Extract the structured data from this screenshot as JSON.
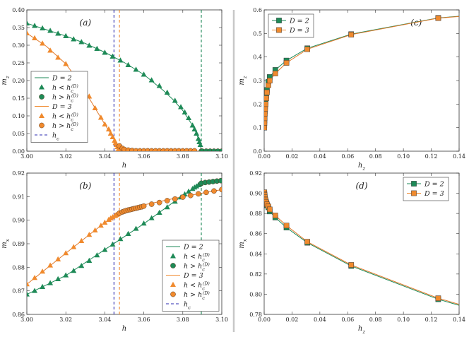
{
  "colors": {
    "green": "#1e8a57",
    "orange": "#f08a2e",
    "orange_line": "#e0782a",
    "blue": "#2b2bb0",
    "divider": "#c8c8c8",
    "edge": "#2a2a2a"
  },
  "chart_data": [
    {
      "id": "a",
      "type": "line",
      "panel_label": "(a)",
      "xlabel": "h",
      "ylabel": "m_z",
      "xlim": [
        3.0,
        3.1
      ],
      "ylim": [
        0.0,
        0.4
      ],
      "xticks": [
        3.0,
        3.02,
        3.04,
        3.06,
        3.08,
        3.1
      ],
      "xtick_labels": [
        "3.00",
        "3.02",
        "3.04",
        "3.06",
        "3.08",
        "3.10"
      ],
      "yticks": [
        0,
        0.05,
        0.1,
        0.15,
        0.2,
        0.25,
        0.3,
        0.35,
        0.4
      ],
      "ytick_labels": [
        "0.00",
        "0.05",
        "0.10",
        "0.15",
        "0.20",
        "0.25",
        "0.30",
        "0.35",
        "0.40"
      ],
      "vlines": [
        {
          "x": 3.0447,
          "color": "blue"
        },
        {
          "x": 3.0475,
          "color": "orange"
        },
        {
          "x": 3.0895,
          "color": "green"
        }
      ],
      "legend_position": "lower-left",
      "legend": [
        {
          "label": "D = 2",
          "kind": "line",
          "color": "green"
        },
        {
          "label": "h < h_c^(D)",
          "kind": "triangle",
          "color": "green"
        },
        {
          "label": "h > h_c^(D)",
          "kind": "circle",
          "color": "green"
        },
        {
          "label": "D = 3",
          "kind": "line",
          "color": "orange"
        },
        {
          "label": "h < h_c^(D)",
          "kind": "triangle",
          "color": "orange"
        },
        {
          "label": "h > h_c^(D)",
          "kind": "circle",
          "color": "orange"
        },
        {
          "label": "h_c",
          "kind": "dashed",
          "color": "blue"
        }
      ],
      "series": [
        {
          "name": "D=2 line",
          "kind": "line",
          "color": "green",
          "x": [
            3.0,
            3.01,
            3.02,
            3.03,
            3.04,
            3.05,
            3.06,
            3.07,
            3.075,
            3.08,
            3.085,
            3.087,
            3.089,
            3.0895,
            3.09,
            3.1
          ],
          "y": [
            0.362,
            0.344,
            0.326,
            0.305,
            0.28,
            0.251,
            0.217,
            0.172,
            0.146,
            0.115,
            0.073,
            0.05,
            0.018,
            0.0,
            0.0,
            0.0
          ]
        },
        {
          "name": "D=2, h < hc",
          "kind": "triangle",
          "color": "green",
          "x": [
            3.0,
            3.004,
            3.008,
            3.012,
            3.016,
            3.02,
            3.024,
            3.028,
            3.032,
            3.036,
            3.04,
            3.044,
            3.048,
            3.052,
            3.056,
            3.06,
            3.064,
            3.068,
            3.072,
            3.076,
            3.079,
            3.081,
            3.083,
            3.085,
            3.086,
            3.087,
            3.088,
            3.0885,
            3.089
          ],
          "y": [
            0.362,
            0.355,
            0.348,
            0.341,
            0.333,
            0.326,
            0.317,
            0.309,
            0.299,
            0.29,
            0.279,
            0.268,
            0.257,
            0.244,
            0.231,
            0.217,
            0.201,
            0.185,
            0.166,
            0.143,
            0.125,
            0.11,
            0.094,
            0.073,
            0.062,
            0.05,
            0.035,
            0.026,
            0.018
          ]
        },
        {
          "name": "D=2, h > hc",
          "kind": "circle",
          "color": "green",
          "x": [
            3.0895,
            3.09,
            3.092,
            3.094,
            3.096,
            3.098,
            3.1
          ],
          "y": [
            0.0,
            0.0,
            0.0,
            0.0,
            0.0,
            0.0,
            0.0
          ]
        },
        {
          "name": "D=3 line",
          "kind": "line",
          "color": "orange",
          "x": [
            3.0,
            3.01,
            3.02,
            3.025,
            3.03,
            3.035,
            3.04,
            3.043,
            3.045,
            3.0465,
            3.0475,
            3.05,
            3.06,
            3.1
          ],
          "y": [
            0.334,
            0.297,
            0.247,
            0.21,
            0.168,
            0.122,
            0.076,
            0.05,
            0.03,
            0.012,
            0.0,
            0.0,
            0.0,
            0.0
          ]
        },
        {
          "name": "D=3, h < hc",
          "kind": "triangle",
          "color": "orange",
          "x": [
            3.0,
            3.004,
            3.008,
            3.012,
            3.016,
            3.02,
            3.024,
            3.028,
            3.032,
            3.035,
            3.038,
            3.04,
            3.042,
            3.043,
            3.044,
            3.045,
            3.0455,
            3.046,
            3.0465,
            3.047
          ],
          "y": [
            0.334,
            0.32,
            0.305,
            0.285,
            0.265,
            0.247,
            0.217,
            0.185,
            0.155,
            0.122,
            0.095,
            0.076,
            0.062,
            0.05,
            0.04,
            0.03,
            0.024,
            0.018,
            0.012,
            0.006
          ]
        },
        {
          "name": "D=3, h > hc",
          "kind": "circle",
          "color": "orange",
          "x": [
            3.0475,
            3.049,
            3.05,
            3.052,
            3.054,
            3.056,
            3.058,
            3.06,
            3.062,
            3.064,
            3.066,
            3.068,
            3.07,
            3.072,
            3.074,
            3.076,
            3.078,
            3.08,
            3.082,
            3.084,
            3.086
          ],
          "y": [
            0.015,
            0.008,
            0.005,
            0.003,
            0.002,
            0.001,
            0.001,
            0.001,
            0.001,
            0.001,
            0.001,
            0.001,
            0.001,
            0.001,
            0.001,
            0.001,
            0.001,
            0.001,
            0.001,
            0.001,
            0.001
          ]
        }
      ]
    },
    {
      "id": "b",
      "type": "line",
      "panel_label": "(b)",
      "xlabel": "h",
      "ylabel": "m_x",
      "xlim": [
        3.0,
        3.1
      ],
      "ylim": [
        0.86,
        0.92
      ],
      "xticks": [
        3.0,
        3.02,
        3.04,
        3.06,
        3.08,
        3.1
      ],
      "xtick_labels": [
        "3.00",
        "3.02",
        "3.04",
        "3.06",
        "3.08",
        "3.10"
      ],
      "yticks": [
        0.86,
        0.87,
        0.88,
        0.89,
        0.9,
        0.91,
        0.92
      ],
      "ytick_labels": [
        "0.86",
        "0.87",
        "0.88",
        "0.89",
        "0.90",
        "0.91",
        "0.92"
      ],
      "vlines": [
        {
          "x": 3.0447,
          "color": "blue"
        },
        {
          "x": 3.0475,
          "color": "orange"
        },
        {
          "x": 3.0895,
          "color": "green"
        }
      ],
      "legend_position": "lower-right",
      "legend": [
        {
          "label": "D = 2",
          "kind": "line",
          "color": "green"
        },
        {
          "label": "h < h_c^(D)",
          "kind": "triangle",
          "color": "green"
        },
        {
          "label": "h > h_c^(D)",
          "kind": "circle",
          "color": "green"
        },
        {
          "label": "D = 3",
          "kind": "line",
          "color": "orange"
        },
        {
          "label": "h < h_c^(D)",
          "kind": "triangle",
          "color": "orange"
        },
        {
          "label": "h > h_c^(D)",
          "kind": "circle",
          "color": "orange"
        },
        {
          "label": "h_c",
          "kind": "dashed",
          "color": "blue"
        }
      ],
      "series": [
        {
          "name": "D=2 line",
          "kind": "line",
          "color": "green",
          "x": [
            3.0,
            3.02,
            3.04,
            3.06,
            3.08,
            3.088,
            3.0895,
            3.095,
            3.1
          ],
          "y": [
            0.8685,
            0.8765,
            0.8875,
            0.8985,
            0.9105,
            0.915,
            0.9157,
            0.9163,
            0.9168
          ]
        },
        {
          "name": "D=2, h < hc",
          "kind": "triangle",
          "color": "green",
          "x": [
            3.0,
            3.004,
            3.008,
            3.012,
            3.016,
            3.02,
            3.024,
            3.028,
            3.032,
            3.036,
            3.04,
            3.044,
            3.048,
            3.052,
            3.056,
            3.06,
            3.064,
            3.068,
            3.072,
            3.076,
            3.079,
            3.081,
            3.083,
            3.085,
            3.086,
            3.087,
            3.088,
            3.0885,
            3.089
          ],
          "y": [
            0.8685,
            0.87,
            0.8717,
            0.8733,
            0.875,
            0.8766,
            0.8785,
            0.8806,
            0.8828,
            0.8851,
            0.8874,
            0.8897,
            0.892,
            0.8942,
            0.8964,
            0.8986,
            0.9009,
            0.9032,
            0.9055,
            0.9079,
            0.9097,
            0.911,
            0.9122,
            0.9133,
            0.9139,
            0.9144,
            0.9149,
            0.9152,
            0.9155
          ]
        },
        {
          "name": "D=2, h > hc",
          "kind": "circle",
          "color": "green",
          "x": [
            3.0895,
            3.0915,
            3.0935,
            3.0955,
            3.0975,
            3.0995
          ],
          "y": [
            0.9157,
            0.916,
            0.9162,
            0.9164,
            0.9166,
            0.9168
          ]
        },
        {
          "name": "D=3 line",
          "kind": "line",
          "color": "orange",
          "x": [
            3.0,
            3.02,
            3.04,
            3.0475,
            3.06,
            3.08,
            3.1
          ],
          "y": [
            0.8728,
            0.886,
            0.899,
            0.903,
            0.9065,
            0.91,
            0.913
          ]
        },
        {
          "name": "D=3, h < hc",
          "kind": "triangle",
          "color": "orange",
          "x": [
            3.0,
            3.004,
            3.008,
            3.012,
            3.016,
            3.02,
            3.024,
            3.028,
            3.032,
            3.035,
            3.038,
            3.04,
            3.042,
            3.043,
            3.044,
            3.045,
            3.0455,
            3.046,
            3.0465,
            3.047
          ],
          "y": [
            0.8728,
            0.8755,
            0.8782,
            0.8808,
            0.8834,
            0.886,
            0.8886,
            0.8912,
            0.8938,
            0.8957,
            0.8977,
            0.899,
            0.9002,
            0.9008,
            0.9013,
            0.9018,
            0.902,
            0.9023,
            0.9025,
            0.9028
          ]
        },
        {
          "name": "D=3, h > hc",
          "kind": "circle",
          "color": "orange",
          "x": [
            3.0475,
            3.049,
            3.05,
            3.051,
            3.052,
            3.053,
            3.054,
            3.055,
            3.056,
            3.057,
            3.058,
            3.059,
            3.06,
            3.064,
            3.068,
            3.072,
            3.076,
            3.08,
            3.084,
            3.088,
            3.092,
            3.096,
            3.1
          ],
          "y": [
            0.903,
            0.9035,
            0.9038,
            0.9041,
            0.9043,
            0.9045,
            0.9047,
            0.9049,
            0.9051,
            0.9053,
            0.9055,
            0.9057,
            0.906,
            0.9068,
            0.9075,
            0.9083,
            0.909,
            0.9098,
            0.9105,
            0.9112,
            0.9118,
            0.9124,
            0.913
          ]
        }
      ]
    },
    {
      "id": "c",
      "type": "line",
      "panel_label": "(c)",
      "xlabel": "h_z",
      "ylabel": "m_z",
      "xlim": [
        0.0,
        0.14
      ],
      "ylim": [
        0.0,
        0.6
      ],
      "xticks": [
        0,
        0.02,
        0.04,
        0.06,
        0.08,
        0.1,
        0.12,
        0.14
      ],
      "xtick_labels": [
        "0.00",
        "0.02",
        "0.04",
        "0.06",
        "0.08",
        "0.10",
        "0.12",
        "0.14"
      ],
      "yticks": [
        0,
        0.1,
        0.2,
        0.3,
        0.4,
        0.5,
        0.6
      ],
      "ytick_labels": [
        "0.0",
        "0.1",
        "0.2",
        "0.3",
        "0.4",
        "0.5",
        "0.6"
      ],
      "vlines": [],
      "legend_position": "top-left",
      "legend": [
        {
          "label": "D = 2",
          "kind": "square-line",
          "color": "green"
        },
        {
          "label": "D = 3",
          "kind": "square-line",
          "color": "orange"
        }
      ],
      "series": [
        {
          "name": "D = 2",
          "kind": "square",
          "color": "green",
          "x": [
            0.0001,
            0.0002,
            0.0003,
            0.0005,
            0.0007,
            0.001,
            0.0015,
            0.002,
            0.003,
            0.004,
            0.008,
            0.016,
            0.031,
            0.0625,
            0.125,
            0.14
          ],
          "y": [
            0.11,
            0.13,
            0.145,
            0.17,
            0.19,
            0.21,
            0.235,
            0.26,
            0.295,
            0.315,
            0.345,
            0.385,
            0.437,
            0.497,
            0.566,
            0.573
          ]
        },
        {
          "name": "D = 3",
          "kind": "square",
          "color": "orange",
          "x": [
            0.0001,
            0.0002,
            0.0003,
            0.0005,
            0.0007,
            0.001,
            0.0015,
            0.002,
            0.003,
            0.004,
            0.008,
            0.016,
            0.031,
            0.0625,
            0.125,
            0.14
          ],
          "y": [
            0.1,
            0.12,
            0.14,
            0.16,
            0.18,
            0.2,
            0.225,
            0.25,
            0.28,
            0.3,
            0.33,
            0.375,
            0.433,
            0.495,
            0.565,
            0.572
          ]
        }
      ]
    },
    {
      "id": "d",
      "type": "line",
      "panel_label": "(d)",
      "xlabel": "h_z",
      "ylabel": "m_x",
      "xlim": [
        0.0,
        0.14
      ],
      "ylim": [
        0.78,
        0.92
      ],
      "xticks": [
        0,
        0.02,
        0.04,
        0.06,
        0.08,
        0.1,
        0.12,
        0.14
      ],
      "xtick_labels": [
        "0.00",
        "0.02",
        "0.04",
        "0.06",
        "0.08",
        "0.10",
        "0.12",
        "0.14"
      ],
      "yticks": [
        0.78,
        0.8,
        0.82,
        0.84,
        0.86,
        0.88,
        0.9,
        0.92
      ],
      "ytick_labels": [
        "0.78",
        "0.80",
        "0.82",
        "0.84",
        "0.86",
        "0.88",
        "0.90",
        "0.92"
      ],
      "vlines": [],
      "legend_position": "top-right",
      "legend": [
        {
          "label": "D = 2",
          "kind": "square-line",
          "color": "green"
        },
        {
          "label": "D = 3",
          "kind": "square-line",
          "color": "orange"
        }
      ],
      "series": [
        {
          "name": "D = 2",
          "kind": "square",
          "color": "green",
          "x": [
            0.0001,
            0.0002,
            0.0003,
            0.0005,
            0.0007,
            0.001,
            0.0015,
            0.002,
            0.003,
            0.004,
            0.008,
            0.016,
            0.031,
            0.0625,
            0.125,
            0.14
          ],
          "y": [
            0.9,
            0.898,
            0.897,
            0.895,
            0.893,
            0.892,
            0.89,
            0.888,
            0.886,
            0.882,
            0.876,
            0.866,
            0.851,
            0.828,
            0.795,
            0.789
          ]
        },
        {
          "name": "D = 3",
          "kind": "square",
          "color": "orange",
          "x": [
            0.0001,
            0.0002,
            0.0003,
            0.0005,
            0.0007,
            0.001,
            0.0015,
            0.002,
            0.003,
            0.004,
            0.008,
            0.016,
            0.031,
            0.0625,
            0.125,
            0.14
          ],
          "y": [
            0.901,
            0.899,
            0.898,
            0.896,
            0.894,
            0.893,
            0.891,
            0.889,
            0.887,
            0.884,
            0.878,
            0.868,
            0.852,
            0.829,
            0.796,
            0.79
          ]
        }
      ]
    }
  ]
}
